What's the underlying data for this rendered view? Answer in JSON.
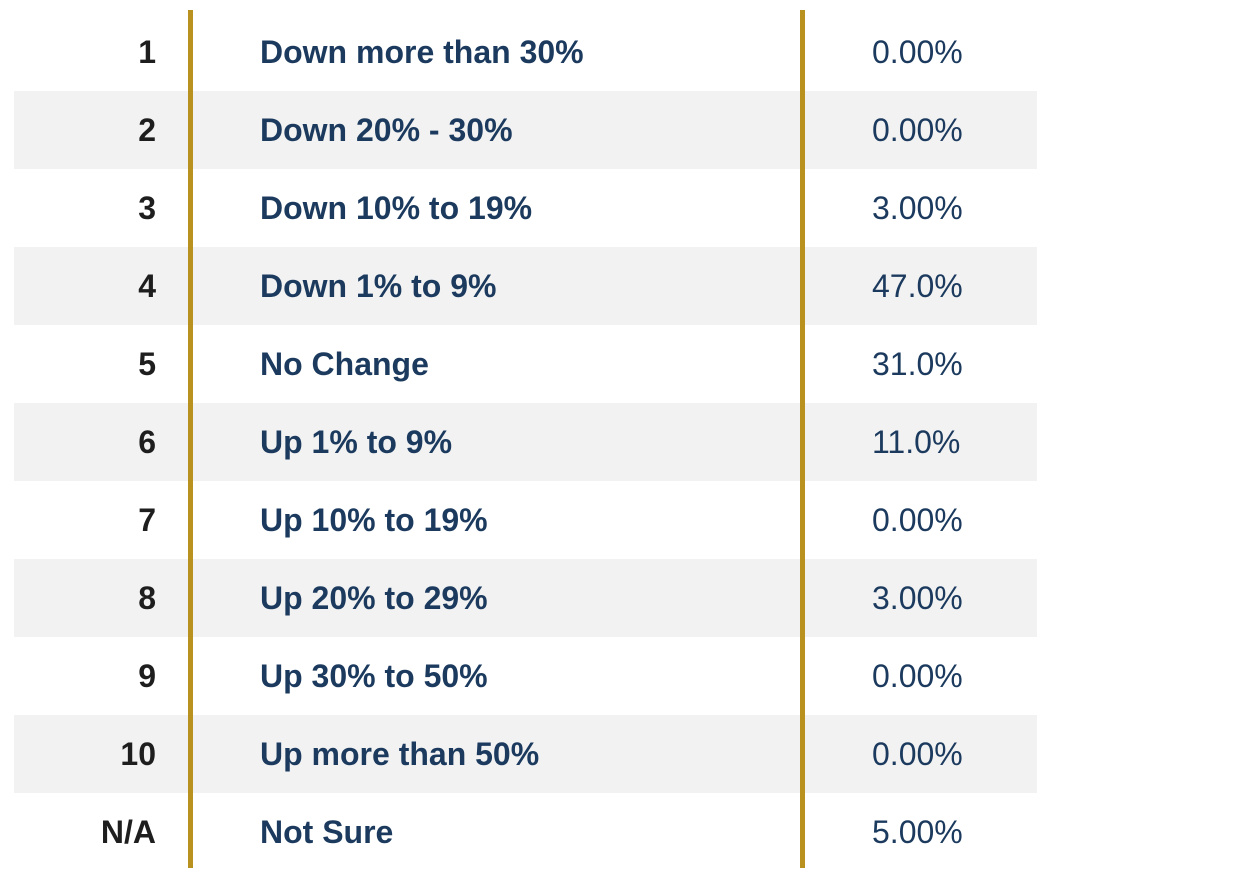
{
  "colors": {
    "accent_gold": "#B8911F",
    "text_navy": "#1B3A5E",
    "text_number": "#1E1E1E",
    "row_stripe": "#F2F2F2",
    "background": "#FFFFFF"
  },
  "chart_data": {
    "type": "table",
    "columns": [
      "option_number",
      "response_option",
      "response_percent"
    ],
    "categories": [
      "Down more than 30%",
      "Down 20% - 30%",
      "Down 10% to 19%",
      "Down 1% to 9%",
      "No Change",
      "Up 1% to 9%",
      "Up 10% to 19%",
      "Up 20% to 29%",
      "Up 30% to 50%",
      "Up more than 50%",
      "Not Sure"
    ],
    "values": [
      0.0,
      0.0,
      3.0,
      47.0,
      31.0,
      11.0,
      0.0,
      3.0,
      0.0,
      0.0,
      5.0
    ],
    "value_labels": [
      "0.00%",
      "0.00%",
      "3.00%",
      "47.0%",
      "31.0%",
      "11.0%",
      "0.00%",
      "3.00%",
      "0.00%",
      "0.00%",
      "5.00%"
    ],
    "title": "",
    "xlabel": "",
    "ylabel": "",
    "layout_hints": {
      "striped_rows": "even rows shaded",
      "separators": "two vertical gold rules between columns"
    }
  },
  "table": {
    "rows": [
      {
        "num": "1",
        "label": "Down more than 30%",
        "value": "0.00%"
      },
      {
        "num": "2",
        "label": "Down 20% - 30%",
        "value": "0.00%"
      },
      {
        "num": "3",
        "label": "Down 10% to 19%",
        "value": "3.00%"
      },
      {
        "num": "4",
        "label": "Down 1% to 9%",
        "value": "47.0%"
      },
      {
        "num": "5",
        "label": "No Change",
        "value": "31.0%"
      },
      {
        "num": "6",
        "label": "Up 1% to 9%",
        "value": "11.0%"
      },
      {
        "num": "7",
        "label": "Up 10% to 19%",
        "value": "0.00%"
      },
      {
        "num": "8",
        "label": "Up 20% to 29%",
        "value": "3.00%"
      },
      {
        "num": "9",
        "label": "Up 30% to 50%",
        "value": "0.00%"
      },
      {
        "num": "10",
        "label": "Up more than 50%",
        "value": "0.00%"
      },
      {
        "num": "N/A",
        "label": "Not Sure",
        "value": "5.00%"
      }
    ]
  }
}
